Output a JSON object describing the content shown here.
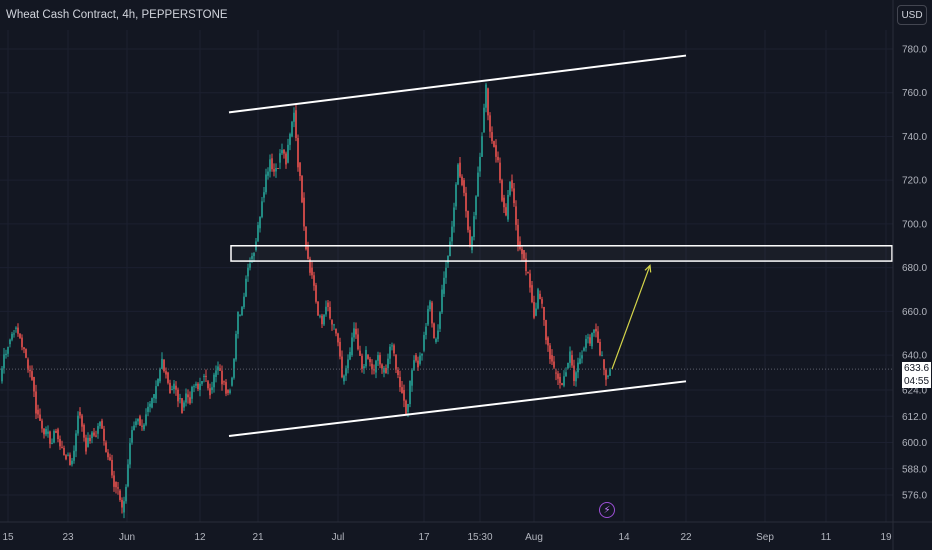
{
  "header": {
    "title": "Wheat Cash Contract, 4h, PEPPERSTONE",
    "currency": "USD"
  },
  "price_label": {
    "price": "633.6",
    "countdown": "04:55"
  },
  "icons": {
    "event": "lightning-icon"
  },
  "colors": {
    "background": "#131722",
    "up": "#26a69a",
    "down": "#ef5350",
    "lines": "#ffffff",
    "arrow": "#d4d44a"
  },
  "chart_data": {
    "type": "candlestick",
    "ylim": [
      563,
      790
    ],
    "y_ticks": [
      576,
      588,
      600,
      612,
      624,
      640,
      660,
      680,
      700,
      720,
      740,
      760,
      780
    ],
    "y_tick_labels": [
      "576.0",
      "588.0",
      "600.0",
      "612.0",
      "624.0",
      "640.0",
      "660.0",
      "680.0",
      "700.0",
      "720.0",
      "740.0",
      "760.0",
      "780.0"
    ],
    "x_tick_labels": [
      "15",
      "23",
      "Jun",
      "12",
      "21",
      "Jul",
      "17",
      "15:30",
      "Aug",
      "14",
      "22",
      "Sep",
      "11",
      "19"
    ],
    "grid": true,
    "last_price": 633.6,
    "path_points": [
      [
        0,
        628
      ],
      [
        4,
        640
      ],
      [
        8,
        645
      ],
      [
        14,
        652
      ],
      [
        20,
        648
      ],
      [
        26,
        638
      ],
      [
        32,
        630
      ],
      [
        36,
        615
      ],
      [
        40,
        610
      ],
      [
        46,
        604
      ],
      [
        52,
        600
      ],
      [
        56,
        606
      ],
      [
        60,
        598
      ],
      [
        66,
        594
      ],
      [
        70,
        590
      ],
      [
        74,
        596
      ],
      [
        78,
        614
      ],
      [
        82,
        608
      ],
      [
        86,
        598
      ],
      [
        90,
        602
      ],
      [
        96,
        604
      ],
      [
        100,
        610
      ],
      [
        104,
        600
      ],
      [
        110,
        592
      ],
      [
        114,
        582
      ],
      [
        118,
        578
      ],
      [
        122,
        568
      ],
      [
        126,
        580
      ],
      [
        130,
        600
      ],
      [
        134,
        608
      ],
      [
        138,
        612
      ],
      [
        142,
        606
      ],
      [
        146,
        614
      ],
      [
        150,
        616
      ],
      [
        154,
        620
      ],
      [
        158,
        628
      ],
      [
        162,
        638
      ],
      [
        166,
        632
      ],
      [
        170,
        624
      ],
      [
        174,
        626
      ],
      [
        178,
        620
      ],
      [
        182,
        616
      ],
      [
        186,
        622
      ],
      [
        190,
        620
      ],
      [
        194,
        626
      ],
      [
        198,
        624
      ],
      [
        202,
        630
      ],
      [
        206,
        628
      ],
      [
        210,
        624
      ],
      [
        214,
        630
      ],
      [
        218,
        634
      ],
      [
        222,
        628
      ],
      [
        226,
        624
      ],
      [
        230,
        626
      ],
      [
        234,
        638
      ],
      [
        238,
        658
      ],
      [
        242,
        662
      ],
      [
        246,
        676
      ],
      [
        250,
        684
      ],
      [
        254,
        688
      ],
      [
        258,
        698
      ],
      [
        262,
        712
      ],
      [
        266,
        722
      ],
      [
        270,
        730
      ],
      [
        274,
        724
      ],
      [
        278,
        728
      ],
      [
        282,
        734
      ],
      [
        286,
        728
      ],
      [
        290,
        740
      ],
      [
        294,
        752
      ],
      [
        298,
        728
      ],
      [
        302,
        712
      ],
      [
        306,
        690
      ],
      [
        310,
        680
      ],
      [
        314,
        672
      ],
      [
        318,
        658
      ],
      [
        322,
        654
      ],
      [
        326,
        664
      ],
      [
        330,
        656
      ],
      [
        334,
        652
      ],
      [
        338,
        646
      ],
      [
        342,
        628
      ],
      [
        346,
        634
      ],
      [
        350,
        640
      ],
      [
        354,
        652
      ],
      [
        358,
        642
      ],
      [
        362,
        634
      ],
      [
        366,
        640
      ],
      [
        370,
        636
      ],
      [
        374,
        632
      ],
      [
        378,
        640
      ],
      [
        382,
        632
      ],
      [
        386,
        634
      ],
      [
        390,
        644
      ],
      [
        394,
        640
      ],
      [
        398,
        630
      ],
      [
        402,
        624
      ],
      [
        406,
        614
      ],
      [
        410,
        626
      ],
      [
        414,
        640
      ],
      [
        418,
        636
      ],
      [
        422,
        642
      ],
      [
        426,
        654
      ],
      [
        430,
        664
      ],
      [
        434,
        646
      ],
      [
        438,
        652
      ],
      [
        442,
        668
      ],
      [
        446,
        682
      ],
      [
        450,
        692
      ],
      [
        454,
        708
      ],
      [
        458,
        728
      ],
      [
        462,
        720
      ],
      [
        466,
        706
      ],
      [
        470,
        688
      ],
      [
        474,
        704
      ],
      [
        478,
        724
      ],
      [
        482,
        742
      ],
      [
        486,
        762
      ],
      [
        490,
        742
      ],
      [
        494,
        736
      ],
      [
        498,
        728
      ],
      [
        502,
        712
      ],
      [
        506,
        702
      ],
      [
        510,
        720
      ],
      [
        514,
        708
      ],
      [
        518,
        692
      ],
      [
        522,
        688
      ],
      [
        526,
        678
      ],
      [
        530,
        672
      ],
      [
        534,
        658
      ],
      [
        538,
        668
      ],
      [
        542,
        662
      ],
      [
        546,
        648
      ],
      [
        550,
        640
      ],
      [
        554,
        632
      ],
      [
        558,
        630
      ],
      [
        562,
        626
      ],
      [
        566,
        634
      ],
      [
        570,
        640
      ],
      [
        574,
        628
      ],
      [
        578,
        636
      ],
      [
        582,
        642
      ],
      [
        586,
        648
      ],
      [
        590,
        644
      ],
      [
        594,
        652
      ],
      [
        598,
        646
      ],
      [
        602,
        638
      ],
      [
        606,
        630
      ],
      [
        610,
        633.6
      ]
    ],
    "annotations": {
      "upper_channel_line": {
        "from": [
          "start",
          751
        ],
        "to": [
          "end",
          777
        ]
      },
      "lower_channel_line": {
        "from": [
          "start",
          603
        ],
        "to": [
          "end",
          628
        ]
      },
      "resistance_zone": [
        683,
        690
      ],
      "projection_arrow": {
        "from": 633.6,
        "to": 681
      }
    }
  }
}
